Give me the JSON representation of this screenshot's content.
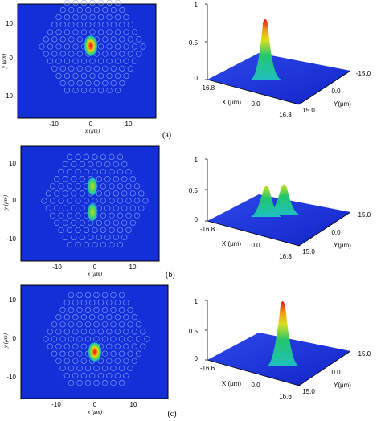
{
  "panels": [
    {
      "caption": "(a)",
      "map": {
        "yticks": [
          "10",
          "0",
          "-10"
        ],
        "xticks": [
          "-10",
          "0",
          "10"
        ],
        "ylabel": "y (μm)",
        "xlabel": "x (μm)"
      },
      "surface": {
        "zticks": [
          "1",
          "0.5",
          "0"
        ],
        "x_edge_labels": [
          "-16.8",
          "0.0",
          "16.8"
        ],
        "y_edge_labels": [
          "-15.0",
          "0.0",
          "15.0"
        ],
        "xlabel": "X (μm)",
        "ylabel": "Y(μm)"
      }
    },
    {
      "caption": "(b)",
      "map": {
        "yticks": [
          "10",
          "0",
          "-10"
        ],
        "xticks": [
          "-10",
          "0",
          "10"
        ],
        "ylabel": "y (μm)",
        "xlabel": "x (μm)"
      },
      "surface": {
        "zticks": [
          "1",
          "0.5",
          "0"
        ],
        "x_edge_labels": [
          "-16.8",
          "0.0",
          "16.8"
        ],
        "y_edge_labels": [
          "-15.0",
          "0.0",
          "15.0"
        ],
        "xlabel": "X (μm)",
        "ylabel": "Y(μm)"
      }
    },
    {
      "caption": "(c)",
      "map": {
        "yticks": [
          "10",
          "0",
          "-10"
        ],
        "xticks": [
          "-10",
          "0",
          "10"
        ],
        "ylabel": "y (μm)",
        "xlabel": "x (μm)"
      },
      "surface": {
        "zticks": [
          "1",
          "0.5",
          "0"
        ],
        "x_edge_labels": [
          "-16.6",
          "0.0",
          "16.6"
        ],
        "y_edge_labels": [
          "-15.0",
          "0.0",
          "15.0"
        ],
        "xlabel": "X (μm)",
        "ylabel": "Y(μm)"
      }
    }
  ],
  "colors": {
    "background": "#1330d8",
    "hole_outline": "#8fa8ff",
    "peak": "#e8101e",
    "mid": "#f2d21a",
    "low": "#23c66d"
  }
}
